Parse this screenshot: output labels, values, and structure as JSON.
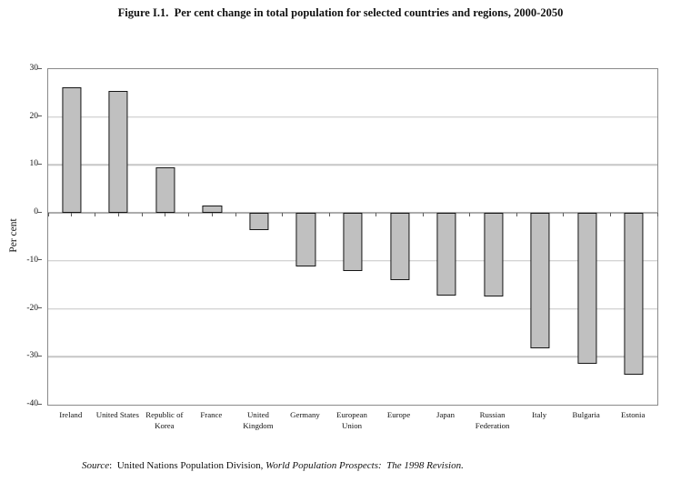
{
  "figure": {
    "title": "Figure I.1.  Per cent change in total population for selected countries and regions, 2000-2050",
    "source": {
      "label_italic": "Source",
      "text_regular": ":  United Nations Population Division, ",
      "text_italic": "World Population Prospects:  The 1998 Revision."
    }
  },
  "chart_data": {
    "type": "bar",
    "title": "Figure I.1.  Per cent change in total population for selected countries and regions, 2000-2050",
    "xlabel": "",
    "ylabel": "Per cent",
    "ylim": [
      -40,
      30
    ],
    "yticks": [
      30,
      20,
      10,
      0,
      -10,
      -20,
      -30,
      -40
    ],
    "grid": true,
    "legend": "none",
    "categories": [
      "Ireland",
      "United States",
      "Republic of Korea",
      "France",
      "United Kingdom",
      "Germany",
      "European Union",
      "Europe",
      "Japan",
      "Russian Federation",
      "Italy",
      "Bulgaria",
      "Estonia"
    ],
    "xtick_lines": [
      [
        "Ireland"
      ],
      [
        "United States"
      ],
      [
        "Republic of",
        "Korea"
      ],
      [
        "France"
      ],
      [
        "United",
        "Kingdom"
      ],
      [
        "Germany"
      ],
      [
        "European",
        "Union"
      ],
      [
        "Europe"
      ],
      [
        "Japan"
      ],
      [
        "Russian",
        "Federation"
      ],
      [
        "Italy"
      ],
      [
        "Bulgaria"
      ],
      [
        "Estonia"
      ]
    ],
    "values": [
      26.3,
      25.4,
      9.5,
      1.5,
      -3.6,
      -11.1,
      -12.1,
      -14.1,
      -17.3,
      -17.5,
      -28.3,
      -31.4,
      -33.8
    ],
    "colors": {
      "bar_fill": "#c0c0c0",
      "bar_border": "#161616",
      "gridline": "#c6c6c6",
      "zero_axis": "#5a5a5a",
      "plot_border": "#8a8a8a"
    }
  }
}
